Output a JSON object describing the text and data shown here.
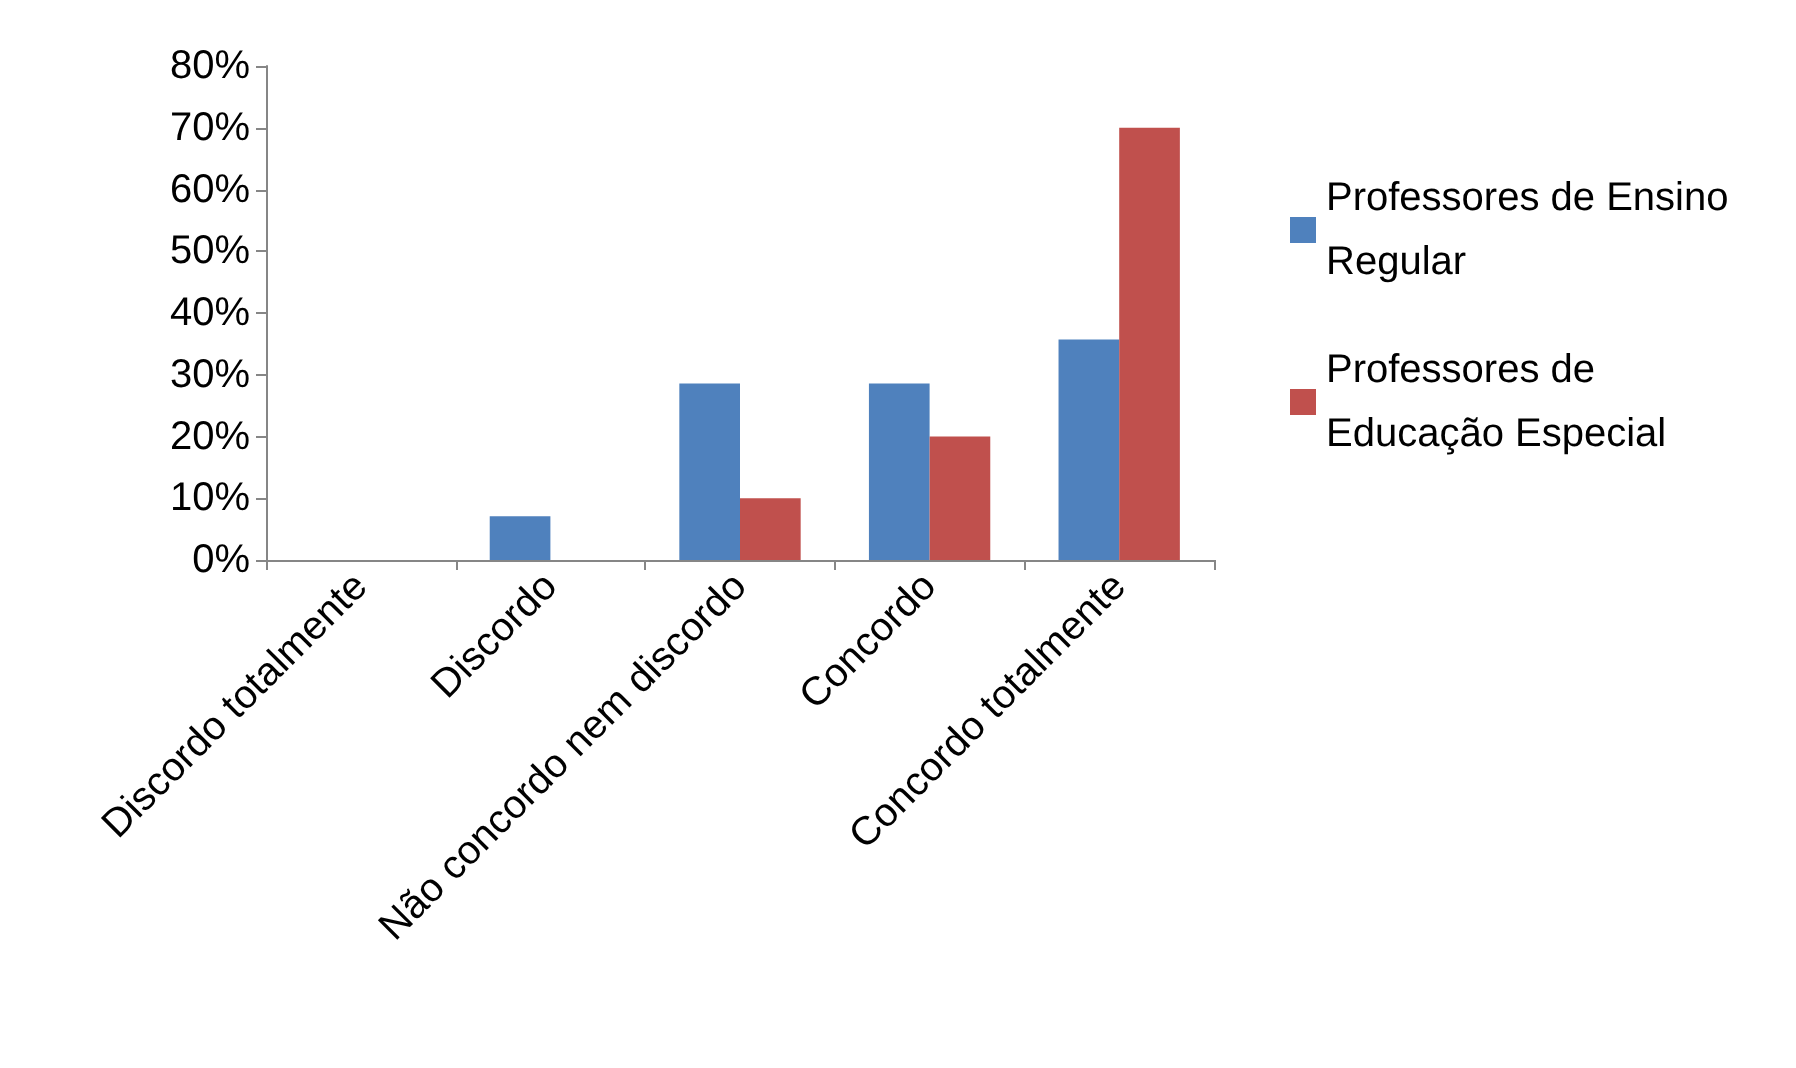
{
  "chart_data": {
    "type": "bar",
    "categories": [
      "Discordo totalmente",
      "Discordo",
      "Não concordo nem discordo",
      "Concordo",
      "Concordo totalmente"
    ],
    "series": [
      {
        "name": "Professores de Ensino Regular",
        "color": "#4f81bd",
        "values": [
          0,
          7.1,
          28.6,
          28.6,
          35.7
        ]
      },
      {
        "name": "Professores de Educação Especial",
        "color": "#c0504d",
        "values": [
          0,
          0,
          10,
          20,
          70
        ]
      }
    ],
    "ylim": [
      0,
      80
    ],
    "yticks": [
      {
        "value": 0,
        "label": "0%"
      },
      {
        "value": 10,
        "label": "10%"
      },
      {
        "value": 20,
        "label": "20%"
      },
      {
        "value": 30,
        "label": "30%"
      },
      {
        "value": 40,
        "label": "40%"
      },
      {
        "value": 50,
        "label": "50%"
      },
      {
        "value": 60,
        "label": "60%"
      },
      {
        "value": 70,
        "label": "70%"
      },
      {
        "value": 80,
        "label": "80%"
      }
    ],
    "grid": false,
    "legend": "right"
  }
}
